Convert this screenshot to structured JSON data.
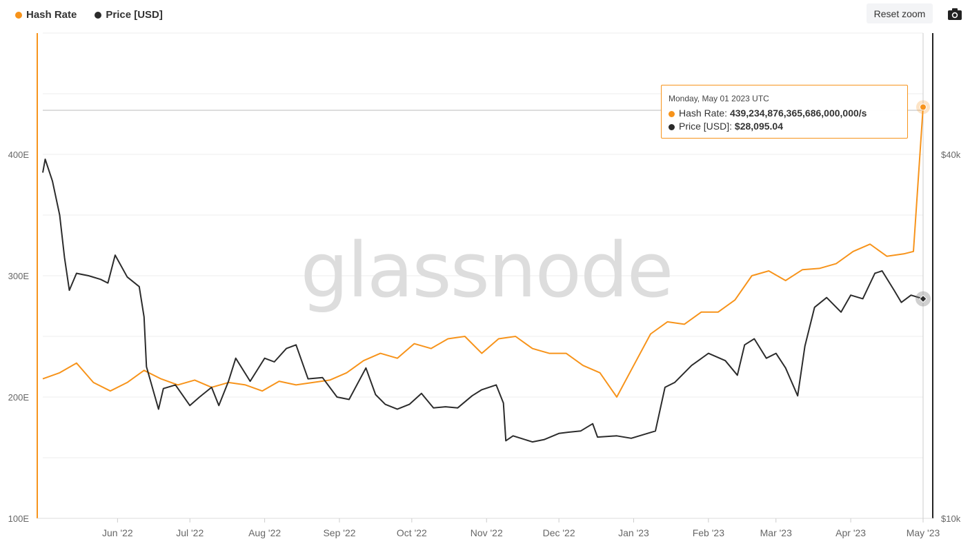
{
  "legend": {
    "hash_rate": "Hash Rate",
    "price": "Price [USD]"
  },
  "toolbar": {
    "reset_zoom_label": "Reset zoom",
    "camera_icon": "camera-icon"
  },
  "watermark": "glassnode",
  "tooltip": {
    "date": "Monday, May 01 2023 UTC",
    "hash_label": "Hash Rate:",
    "hash_value": "439,234,876,365,686,000,000/s",
    "price_label": "Price [USD]:",
    "price_value": "$28,095.04"
  },
  "colors": {
    "hash_rate": "#f7931a",
    "price": "#2b2b2b",
    "grid": "#eeeeee",
    "axis_text": "#666666"
  },
  "chart_data": {
    "type": "line",
    "x_start": "2022-05-01",
    "x_end": "2023-05-01",
    "xticks": [
      "Jun '22",
      "Jul '22",
      "Aug '22",
      "Sep '22",
      "Oct '22",
      "Nov '22",
      "Dec '22",
      "Jan '23",
      "Feb '23",
      "Mar '23",
      "Apr '23",
      "May '23"
    ],
    "xtick_dates": [
      "2022-06-01",
      "2022-07-01",
      "2022-08-01",
      "2022-09-01",
      "2022-10-01",
      "2022-11-01",
      "2022-12-01",
      "2023-01-01",
      "2023-02-01",
      "2023-03-01",
      "2023-04-01",
      "2023-05-01"
    ],
    "y_left": {
      "ticks": [
        "100E",
        "200E",
        "300E",
        "400E"
      ],
      "tick_values": [
        100,
        200,
        300,
        400
      ],
      "range": [
        100,
        500
      ]
    },
    "y_right": {
      "ticks": [
        "$10k",
        "$40k"
      ],
      "tick_values": [
        10000,
        40000
      ],
      "range": [
        10000,
        50000
      ]
    },
    "series": [
      {
        "name": "Hash Rate",
        "axis": "left",
        "x": [
          "2022-05-01",
          "2022-05-08",
          "2022-05-15",
          "2022-05-22",
          "2022-05-29",
          "2022-06-05",
          "2022-06-12",
          "2022-06-19",
          "2022-06-26",
          "2022-07-03",
          "2022-07-10",
          "2022-07-17",
          "2022-07-24",
          "2022-07-31",
          "2022-08-07",
          "2022-08-14",
          "2022-08-21",
          "2022-08-28",
          "2022-09-04",
          "2022-09-11",
          "2022-09-18",
          "2022-09-25",
          "2022-10-02",
          "2022-10-09",
          "2022-10-16",
          "2022-10-23",
          "2022-10-30",
          "2022-11-06",
          "2022-11-13",
          "2022-11-20",
          "2022-11-27",
          "2022-12-04",
          "2022-12-11",
          "2022-12-18",
          "2022-12-25",
          "2023-01-01",
          "2023-01-08",
          "2023-01-15",
          "2023-01-22",
          "2023-01-29",
          "2023-02-05",
          "2023-02-12",
          "2023-02-19",
          "2023-02-26",
          "2023-03-05",
          "2023-03-12",
          "2023-03-19",
          "2023-03-26",
          "2023-04-02",
          "2023-04-09",
          "2023-04-16",
          "2023-04-23",
          "2023-04-27",
          "2023-05-01"
        ],
        "y": [
          215,
          220,
          228,
          212,
          205,
          212,
          222,
          215,
          210,
          214,
          208,
          212,
          210,
          205,
          213,
          210,
          212,
          214,
          220,
          230,
          236,
          232,
          244,
          240,
          248,
          250,
          236,
          248,
          250,
          240,
          236,
          236,
          226,
          220,
          200,
          226,
          252,
          262,
          260,
          270,
          270,
          280,
          300,
          304,
          296,
          305,
          306,
          310,
          320,
          326,
          316,
          318,
          320,
          439
        ]
      },
      {
        "name": "Price [USD]",
        "axis": "right",
        "x": [
          "2022-05-01",
          "2022-05-02",
          "2022-05-05",
          "2022-05-08",
          "2022-05-10",
          "2022-05-12",
          "2022-05-15",
          "2022-05-20",
          "2022-05-25",
          "2022-05-28",
          "2022-05-31",
          "2022-06-05",
          "2022-06-10",
          "2022-06-12",
          "2022-06-13",
          "2022-06-16",
          "2022-06-18",
          "2022-06-20",
          "2022-06-25",
          "2022-07-01",
          "2022-07-05",
          "2022-07-10",
          "2022-07-13",
          "2022-07-17",
          "2022-07-20",
          "2022-07-26",
          "2022-08-01",
          "2022-08-05",
          "2022-08-10",
          "2022-08-14",
          "2022-08-19",
          "2022-08-25",
          "2022-08-31",
          "2022-09-05",
          "2022-09-12",
          "2022-09-16",
          "2022-09-20",
          "2022-09-25",
          "2022-09-30",
          "2022-10-05",
          "2022-10-10",
          "2022-10-15",
          "2022-10-20",
          "2022-10-26",
          "2022-10-30",
          "2022-11-05",
          "2022-11-08",
          "2022-11-09",
          "2022-11-12",
          "2022-11-20",
          "2022-11-25",
          "2022-12-01",
          "2022-12-05",
          "2022-12-10",
          "2022-12-15",
          "2022-12-17",
          "2022-12-25",
          "2022-12-31",
          "2023-01-05",
          "2023-01-10",
          "2023-01-14",
          "2023-01-18",
          "2023-01-25",
          "2023-02-01",
          "2023-02-08",
          "2023-02-13",
          "2023-02-16",
          "2023-02-20",
          "2023-02-25",
          "2023-03-01",
          "2023-03-05",
          "2023-03-10",
          "2023-03-13",
          "2023-03-17",
          "2023-03-22",
          "2023-03-28",
          "2023-04-01",
          "2023-04-06",
          "2023-04-11",
          "2023-04-14",
          "2023-04-19",
          "2023-04-22",
          "2023-04-26",
          "2023-05-01"
        ],
        "y": [
          38500,
          39600,
          37800,
          35000,
          31500,
          28800,
          30200,
          30000,
          29700,
          29400,
          31700,
          29900,
          29100,
          26600,
          22500,
          20400,
          19000,
          20700,
          21000,
          19300,
          20000,
          20800,
          19300,
          21300,
          23200,
          21300,
          23200,
          22900,
          24000,
          24300,
          21500,
          21600,
          20000,
          19800,
          22400,
          20200,
          19400,
          19000,
          19400,
          20300,
          19100,
          19200,
          19100,
          20100,
          20600,
          21000,
          19500,
          16400,
          16800,
          16300,
          16500,
          17000,
          17100,
          17200,
          17800,
          16700,
          16800,
          16600,
          16900,
          17200,
          20800,
          21200,
          22600,
          23600,
          23000,
          21800,
          24300,
          24800,
          23200,
          23600,
          22400,
          20100,
          24200,
          27400,
          28200,
          27000,
          28400,
          28100,
          30200,
          30400,
          28800,
          27800,
          28400,
          28095
        ]
      }
    ],
    "grid": "horizontal",
    "legend": "top-left",
    "highlight": {
      "date": "2023-05-01",
      "hash_rate": 439,
      "price": 28095.04
    }
  }
}
